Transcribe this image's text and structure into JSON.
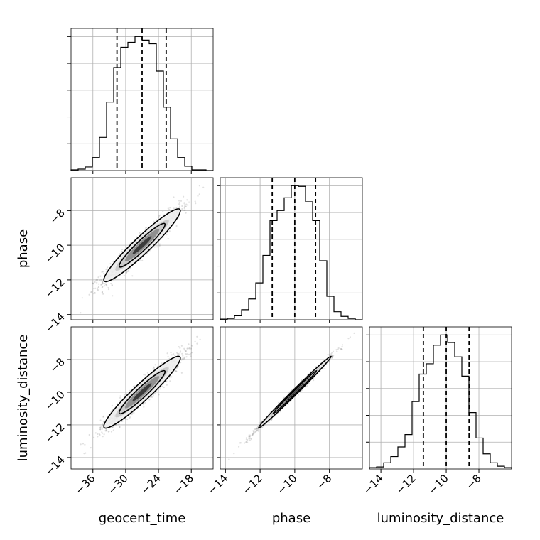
{
  "chart_data": {
    "type": "corner",
    "grid": true,
    "parameters": [
      {
        "name": "geocent_time",
        "xlabel": "geocent_time",
        "range": [
          -40,
          -14
        ],
        "ticks": [
          -36,
          -30,
          -24,
          -18
        ],
        "median": -27.0,
        "lower": -31.6,
        "upper": -22.6
      },
      {
        "name": "phase",
        "ylabel": "phase",
        "xlabel": "phase",
        "range": [
          -14.3,
          -6.1
        ],
        "ticks": [
          -14,
          -12,
          -10,
          -8
        ],
        "median": -10.0,
        "lower": -11.3,
        "upper": -8.8
      },
      {
        "name": "luminosity_distance",
        "ylabel": "luminosity_distance",
        "xlabel": "luminosity_distance",
        "range": [
          -14.7,
          -6.0
        ],
        "ticks": [
          -14,
          -12,
          -10,
          -8
        ],
        "median": -10.0,
        "lower": -11.4,
        "upper": -8.6
      }
    ],
    "histograms": [
      {
        "parameter": "geocent_time",
        "bin_edges": [
          -40.0,
          -38.7,
          -37.4,
          -36.1,
          -34.8,
          -33.5,
          -32.2,
          -30.9,
          -29.6,
          -28.3,
          -27.0,
          -25.7,
          -24.4,
          -23.1,
          -21.8,
          -20.5,
          -19.2,
          -17.9,
          -16.6,
          -15.3,
          -14.0
        ],
        "counts": [
          1,
          2,
          5,
          18,
          46,
          95,
          143,
          171,
          178,
          186,
          181,
          176,
          138,
          88,
          44,
          18,
          6,
          1,
          1,
          0
        ]
      },
      {
        "parameter": "phase",
        "bin_edges": [
          -14.3,
          -13.89,
          -13.48,
          -13.07,
          -12.66,
          -12.25,
          -11.84,
          -11.43,
          -11.02,
          -10.61,
          -10.2,
          -9.79,
          -9.38,
          -8.97,
          -8.56,
          -8.15,
          -7.74,
          -7.33,
          -6.92,
          -6.51,
          -6.1
        ],
        "counts": [
          1,
          2,
          6,
          15,
          31,
          55,
          96,
          148,
          163,
          182,
          200,
          199,
          176,
          148,
          88,
          35,
          12,
          5,
          2,
          0
        ]
      },
      {
        "parameter": "luminosity_distance",
        "bin_edges": [
          -14.7,
          -14.265,
          -13.83,
          -13.395,
          -12.96,
          -12.525,
          -12.09,
          -11.655,
          -11.22,
          -10.785,
          -10.35,
          -9.915,
          -9.48,
          -9.045,
          -8.61,
          -8.175,
          -7.74,
          -7.305,
          -6.87,
          -6.435,
          -6.0
        ],
        "counts": [
          2,
          3,
          9,
          18,
          32,
          50,
          98,
          138,
          153,
          180,
          195,
          184,
          163,
          135,
          82,
          45,
          22,
          9,
          4,
          2
        ]
      }
    ],
    "pairs": [
      {
        "x": "geocent_time",
        "y": "phase",
        "x_center": -27.0,
        "y_center": -10.0,
        "x_sd": 3.5,
        "y_sd": 1.05,
        "correlation": 0.95
      },
      {
        "x": "geocent_time",
        "y": "luminosity_distance",
        "x_center": -27.0,
        "y_center": -10.0,
        "x_sd": 3.5,
        "y_sd": 1.1,
        "correlation": 0.95
      },
      {
        "x": "phase",
        "y": "luminosity_distance",
        "x_center": -10.0,
        "y_center": -10.0,
        "x_sd": 1.05,
        "y_sd": 1.1,
        "correlation": 0.995
      }
    ]
  }
}
